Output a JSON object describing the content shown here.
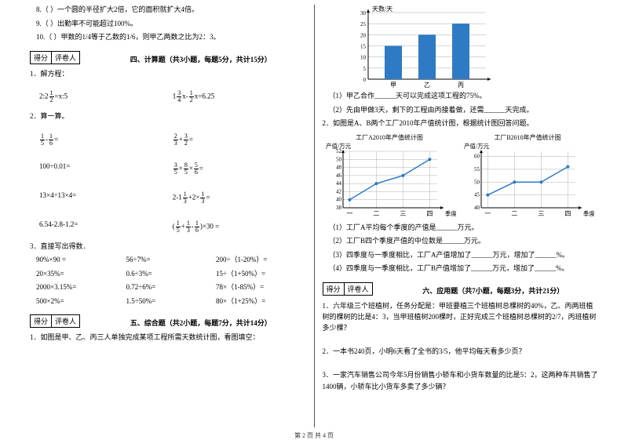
{
  "left": {
    "q8": "8.（  ）一个圆的半径扩大2倍，它的面积就扩大4倍。",
    "q9": "9.（  ）出勤率不可能超过100%。",
    "q10": "10.（  ）甲数的1/4等于乙数的1/6，则甲乙两数之比为2：3。",
    "score_a": "得分",
    "score_b": "评卷人",
    "sec4_title": "四、计算题（共3小题，每题5分，共计15分）",
    "p1": "1．解方程：",
    "eq1a_pre": "2:2",
    "eq1a_mid": "=x:5",
    "eq1b_pre": "1",
    "eq1b_mid": "x-",
    "eq1b_suf": "x=6.25",
    "p2": "2．算一算。",
    "eq2a_l": "-",
    "eq2b_l": "+",
    "eq2c": "100÷0.01=",
    "eq2d_l": "×",
    "eq2d_m": "×",
    "eq2e": "13×4÷13×4=",
    "eq2f_pre": "2-1",
    "eq2f_mid": "+2×",
    "eq2g": "6.54-2.8-1.2=",
    "eq2h_pre": "(",
    "eq2h_a": "+",
    "eq2h_b": "-",
    "eq2h_suf": ")×30 =",
    "p3": "3．直接写出得数．",
    "t": {
      "r1": [
        "90%×90 =",
        "56÷7%=",
        "200÷（1-20%）="
      ],
      "r2": [
        "20×35%=",
        "0.6÷3%=",
        "15÷（1+50%）="
      ],
      "r3": [
        "2000×3.15%=",
        "0.72÷6%=",
        "78×（1-85%）="
      ],
      "r4": [
        "500×2%=",
        "1.5÷50%=",
        "80×（1+25%）="
      ]
    },
    "sec5_title": "五、综合题（共2小题，每题7分，共计14分）",
    "p5_1": "1．如图是甲、乙、丙三人单独完成某项工程所需天数统计图，看图填空："
  },
  "right": {
    "bar_chart": {
      "y_label": "天数/天",
      "y_max": 30,
      "y_step": 5,
      "cats": [
        "甲",
        "乙",
        "丙"
      ],
      "vals": [
        15,
        20,
        25
      ],
      "bar_color": "#2e7ac4",
      "grid_color": "#a8a8a8",
      "axis_color": "#000"
    },
    "p1_1": "（1）甲乙合作______天可以完成这项工程的75%。",
    "p1_2": "（2）先由甲做3天，剩下的工程由丙接着做，还需______天完成。",
    "p2": "2．如图是A、B两个工厂2010年产值统计图，根据统计图回答问题。",
    "lcA": {
      "title": "工厂A2010年产值统计图",
      "y_label": "产值/万元",
      "x_labels": [
        "一",
        "二",
        "三",
        "四"
      ],
      "x_title": "季度",
      "y_min": 38,
      "y_max": 52,
      "y_step": 2,
      "vals": [
        40,
        44,
        46,
        50
      ],
      "line_color": "#2e7ac4",
      "grid_color": "#b0b0b0"
    },
    "lcB": {
      "title": "工厂B2010年产值统计图",
      "y_label": "产值/万元",
      "x_labels": [
        "一",
        "二",
        "三",
        "四"
      ],
      "x_title": "季度",
      "y_min": 40,
      "y_max": 62,
      "y_step": 5,
      "vals": [
        45,
        50,
        50,
        56
      ],
      "line_color": "#2e7ac4",
      "grid_color": "#b0b0b0"
    },
    "q2_1": "（1）工厂A平均每个季度的产值是______万元。",
    "q2_2": "（2）工厂B四个季度产值的中位数是______万元。",
    "q2_3": "（3）四季度与一季度相比，工厂A产值增加了______万元，增加了______%。",
    "q2_4": "（4）四季度与一季度相比，工厂B产值增加了______万元，增加了______%。",
    "score_a": "得分",
    "score_b": "评卷人",
    "sec6_title": "六、应用题（共7小题，每题3分，共计21分）",
    "a1": "1．六年级三个班植树，任务分配是：甲班要植三个班植树总棵树的40%，乙、丙两班植树的棵树的比是4：3，当甲班植树200棵时，正好完成三个班植树总棵树的2/7，丙班植树多少棵？",
    "a2": "2．一本书240页，小明6天看了全书的3/5，他平均每天看多少页？",
    "a3": "3．一家汽车销售公司今年5月份销售小轿车和小货车数量的比是5：2，这两种车共销售了1400辆，小轿车比小货车多卖了多少辆？"
  },
  "footer": "第 2 页 共 4 页"
}
